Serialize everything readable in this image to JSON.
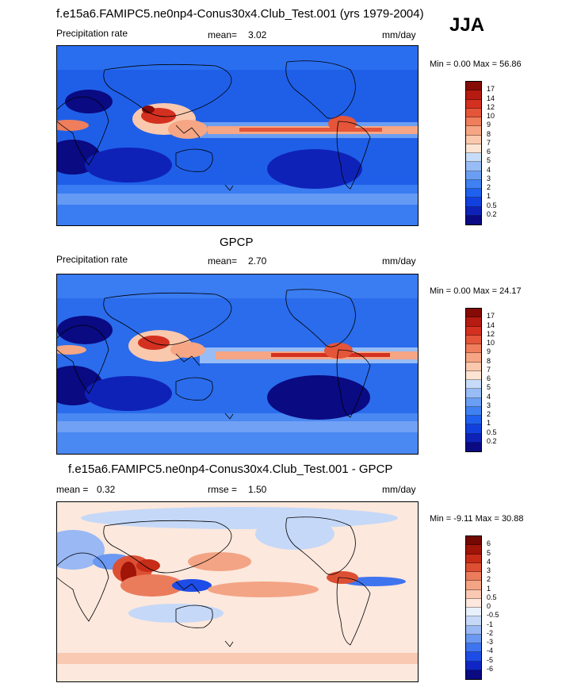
{
  "season": "JJA",
  "colors": {
    "precip": [
      "#0a0a82",
      "#0f22b8",
      "#1240de",
      "#2060ee",
      "#3f80f2",
      "#6a9ef3",
      "#97bcf6",
      "#c6dcfa",
      "#fbe4d2",
      "#fac8ad",
      "#f6a684",
      "#ef7e5c",
      "#e4553a",
      "#d43020",
      "#b51b10",
      "#850b06"
    ],
    "diff": [
      "#0a0a82",
      "#1026c4",
      "#1e4ce6",
      "#3f74ef",
      "#6b98f1",
      "#99b8f4",
      "#c5d8f8",
      "#e8f0fc",
      "#fce8dd",
      "#f9c9b1",
      "#f3a485",
      "#ea7c5c",
      "#dd4f33",
      "#c72c18",
      "#a11408",
      "#740802"
    ],
    "land_outline": "#000000"
  },
  "panels": [
    {
      "title": "f.e15a6.FAMIPC5.ne0np4-Conus30x4.Club_Test.001 (yrs 1979-2004)",
      "left_label": "Precipitation rate",
      "mid_label": "mean=",
      "mid_value": "3.02",
      "units": "mm/day",
      "min_label": "Min =",
      "min_value": "0.00",
      "max_label": "Max =",
      "max_value": "56.86",
      "colorbar": {
        "palette": "precip",
        "labels": [
          "17",
          "14",
          "12",
          "10",
          "9",
          "8",
          "7",
          "6",
          "5",
          "4",
          "3",
          "2",
          "1",
          "0.5",
          "0.2"
        ]
      }
    },
    {
      "title": "GPCP",
      "left_label": "Precipitation rate",
      "mid_label": "mean=",
      "mid_value": "2.70",
      "units": "mm/day",
      "min_label": "Min =",
      "min_value": "0.00",
      "max_label": "Max =",
      "max_value": "24.17",
      "colorbar": {
        "palette": "precip",
        "labels": [
          "17",
          "14",
          "12",
          "10",
          "9",
          "8",
          "7",
          "6",
          "5",
          "4",
          "3",
          "2",
          "1",
          "0.5",
          "0.2"
        ]
      }
    },
    {
      "title": "f.e15a6.FAMIPC5.ne0np4-Conus30x4.Club_Test.001 - GPCP",
      "left_label": "mean =",
      "left_value": "0.32",
      "mid_label": "rmse =",
      "mid_value": "1.50",
      "units": "mm/day",
      "min_label": "Min =",
      "min_value": "-9.11",
      "max_label": "Max =",
      "max_value": "30.88",
      "colorbar": {
        "palette": "diff",
        "labels": [
          "6",
          "5",
          "4",
          "3",
          "2",
          "1",
          "0.5",
          "0",
          "-0.5",
          "-1",
          "-2",
          "-3",
          "-4",
          "-5",
          "-6"
        ]
      }
    }
  ],
  "chart_data": [
    {
      "type": "heatmap",
      "title": "f.e15a6.FAMIPC5.ne0np4-Conus30x4.Club_Test.001 (yrs 1979-2004)",
      "variable": "Precipitation rate",
      "units": "mm/day",
      "mean": 3.02,
      "min": 0.0,
      "max": 56.86,
      "levels": [
        0.2,
        0.5,
        1,
        2,
        3,
        4,
        5,
        6,
        7,
        8,
        9,
        10,
        12,
        14,
        17
      ]
    },
    {
      "type": "heatmap",
      "title": "GPCP",
      "variable": "Precipitation rate",
      "units": "mm/day",
      "mean": 2.7,
      "min": 0.0,
      "max": 24.17,
      "levels": [
        0.2,
        0.5,
        1,
        2,
        3,
        4,
        5,
        6,
        7,
        8,
        9,
        10,
        12,
        14,
        17
      ]
    },
    {
      "type": "heatmap",
      "title": "f.e15a6.FAMIPC5.ne0np4-Conus30x4.Club_Test.001 - GPCP",
      "units": "mm/day",
      "mean": 0.32,
      "rmse": 1.5,
      "min": -9.11,
      "max": 30.88,
      "levels": [
        -6,
        -5,
        -4,
        -3,
        -2,
        -1,
        -0.5,
        0,
        0.5,
        1,
        2,
        3,
        4,
        5,
        6
      ]
    }
  ]
}
